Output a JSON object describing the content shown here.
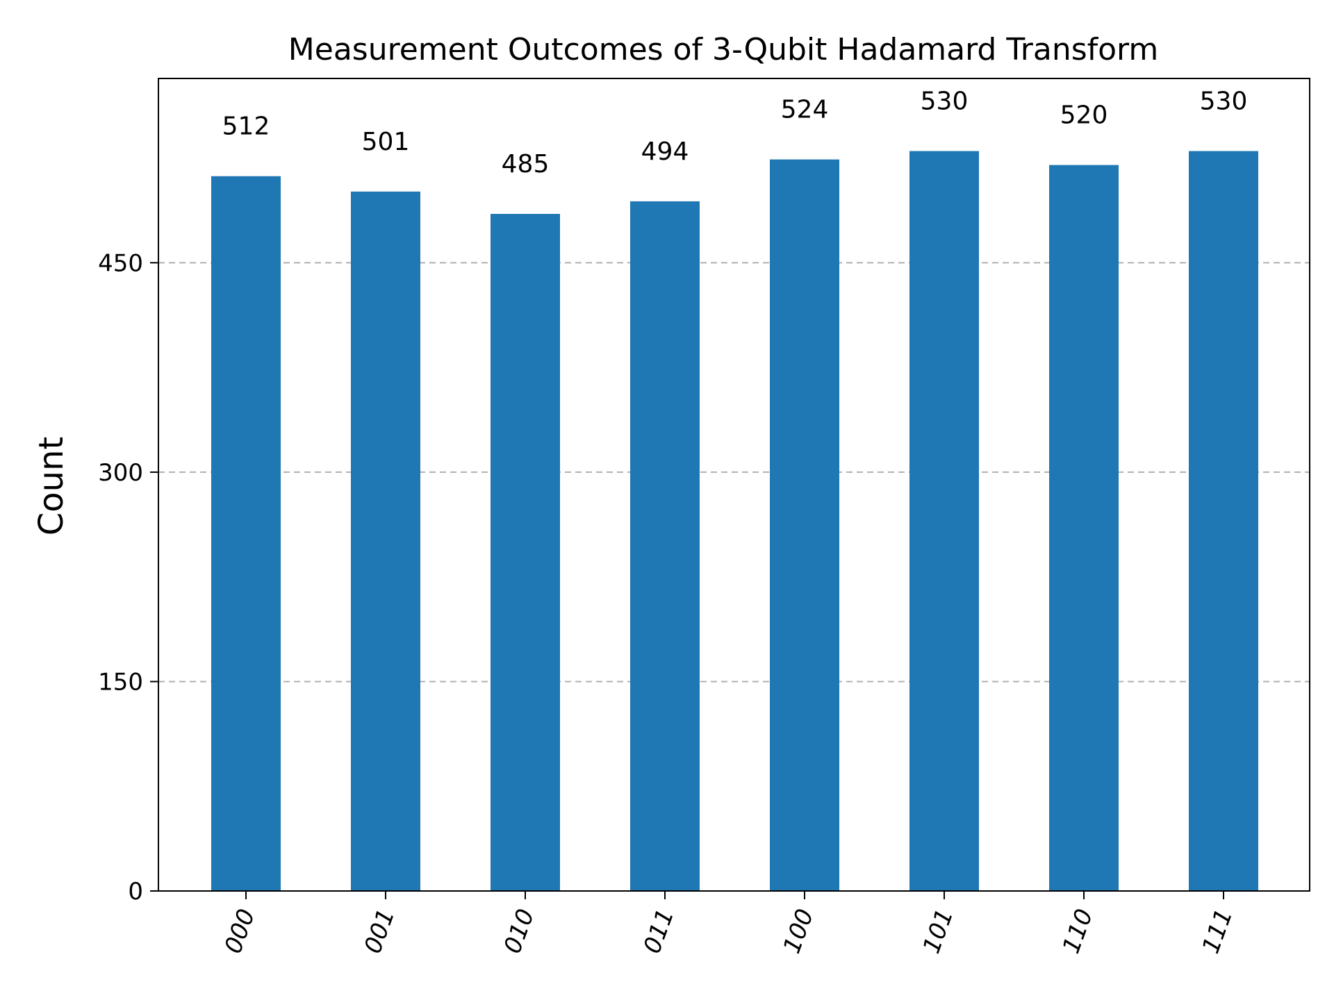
{
  "chart_data": {
    "type": "bar",
    "title": "Measurement Outcomes of 3-Qubit Hadamard Transform",
    "xlabel": "",
    "ylabel": "Count",
    "categories": [
      "000",
      "001",
      "010",
      "011",
      "100",
      "101",
      "110",
      "111"
    ],
    "values": [
      512,
      501,
      485,
      494,
      524,
      530,
      520,
      530
    ],
    "ylim": [
      0,
      582
    ],
    "yticks": [
      0,
      150,
      300,
      450
    ],
    "bar_color": "#1f77b4",
    "grid": "y-dashed",
    "xtick_rotation": 70,
    "data_labels": true,
    "legend": "none"
  }
}
